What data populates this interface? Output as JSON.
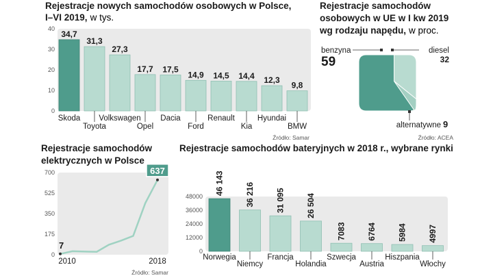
{
  "colors": {
    "bar_dark": "#4f9c8c",
    "bar_light": "#b8dbd0",
    "bar_stroke": "#8fbfb2",
    "panel_bg": "#eaeaea",
    "line": "#9fd2c2",
    "label_bg": "#4f9c8c"
  },
  "chart_data": [
    {
      "type": "bar",
      "title": "Rejestracje nowych samochodów osobowych w Polsce,",
      "title_line2": "I–VI 2019,",
      "unit": "w tys.",
      "source": "Źródło: Samar",
      "categories": [
        "Skoda",
        "Toyota",
        "Volkswagen",
        "Opel",
        "Dacia",
        "Ford",
        "Renault",
        "Kia",
        "Hyundai",
        "BMW"
      ],
      "values": [
        34.7,
        31.3,
        27.3,
        17.7,
        17.5,
        14.9,
        14.5,
        14.4,
        12.3,
        9.8
      ],
      "value_labels": [
        "34,7",
        "31,3",
        "27,3",
        "17,7",
        "17,5",
        "14,9",
        "14,5",
        "14,4",
        "12,3",
        "9,8"
      ],
      "ylim": [
        0,
        40
      ],
      "yticks": [
        0,
        10,
        20,
        30,
        40
      ],
      "grid": false
    },
    {
      "type": "pie",
      "title_lines": [
        "Rejestracje samochodów",
        "osobowych  w UE w I kw 2019"
      ],
      "title_line3": "wg rodzaju napędu,",
      "unit": "w proc.",
      "source": "Źródło: ACEA",
      "slices": [
        {
          "name": "benzyna",
          "value": 59
        },
        {
          "name": "diesel",
          "value": 32
        },
        {
          "name": "alternatywne",
          "value": 9
        }
      ]
    },
    {
      "type": "line",
      "title_lines": [
        "Rejestracje samochodów",
        "elektrycznych w Polsce"
      ],
      "source": "Źródło: Samar",
      "x": [
        2010,
        2011,
        2012,
        2013,
        2014,
        2015,
        2016,
        2017,
        2018
      ],
      "y": [
        7,
        30,
        27,
        25,
        85,
        120,
        160,
        440,
        637
      ],
      "xtick_labels": [
        "2010",
        "2018"
      ],
      "yticks": [
        0,
        175,
        350,
        525,
        700
      ],
      "ylim": [
        0,
        700
      ],
      "first_label": "7",
      "last_label": "637"
    },
    {
      "type": "bar",
      "title": "Rejestracje samochodów bateryjnych w 2018 r., wybrane rynki",
      "categories": [
        "Norwegia",
        "Niemcy",
        "Francja",
        "Holandia",
        "Szwecja",
        "Austria",
        "Hiszpania",
        "Włochy"
      ],
      "values": [
        46143,
        36216,
        31095,
        26504,
        7083,
        6764,
        5984,
        4997
      ],
      "value_labels": [
        "46 143",
        "36 216",
        "31 095",
        "26 504",
        "7083",
        "6764",
        "5984",
        "4997"
      ],
      "ylim": [
        0,
        48000
      ],
      "yticks": [
        0,
        12000,
        24000,
        36000,
        48000
      ]
    }
  ]
}
